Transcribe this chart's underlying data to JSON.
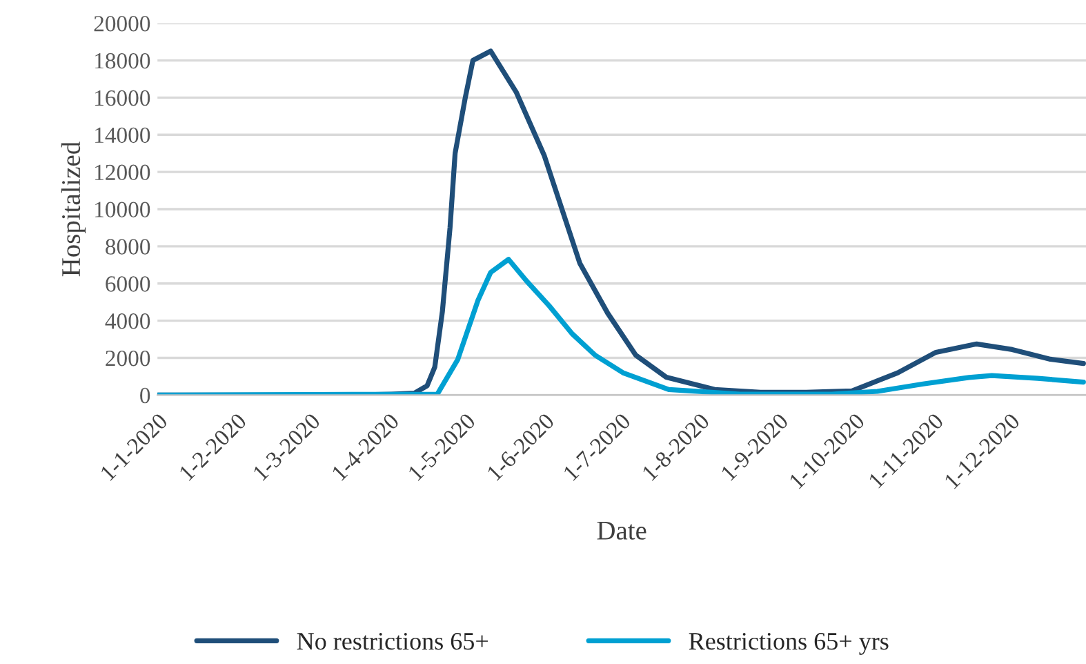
{
  "chart_data": {
    "type": "line",
    "xlabel": "Date",
    "ylabel": "Hospitalized",
    "ylim": [
      0,
      20000
    ],
    "yticks": [
      0,
      2000,
      4000,
      6000,
      8000,
      10000,
      12000,
      14000,
      16000,
      18000,
      20000
    ],
    "xlim": [
      "2020-01-01",
      "2020-12-31"
    ],
    "xticks": [
      {
        "value": "2020-01-01",
        "label": "1-1-2020"
      },
      {
        "value": "2020-02-01",
        "label": "1-2-2020"
      },
      {
        "value": "2020-03-01",
        "label": "1-3-2020"
      },
      {
        "value": "2020-04-01",
        "label": "1-4-2020"
      },
      {
        "value": "2020-05-01",
        "label": "1-5-2020"
      },
      {
        "value": "2020-06-01",
        "label": "1-6-2020"
      },
      {
        "value": "2020-07-01",
        "label": "1-7-2020"
      },
      {
        "value": "2020-08-01",
        "label": "1-8-2020"
      },
      {
        "value": "2020-09-01",
        "label": "1-9-2020"
      },
      {
        "value": "2020-10-01",
        "label": "1-10-2020"
      },
      {
        "value": "2020-11-01",
        "label": "1-11-2020"
      },
      {
        "value": "2020-12-01",
        "label": "1-12-2020"
      }
    ],
    "grid": "y",
    "legend": "bottom",
    "marker": "none",
    "line_style": "solid",
    "series": [
      {
        "name": "No restrictions 65+",
        "color": "#1f4e79",
        "x": [
          "2020-01-01",
          "2020-03-15",
          "2020-04-02",
          "2020-04-11",
          "2020-04-16",
          "2020-04-19",
          "2020-04-22",
          "2020-04-25",
          "2020-04-27",
          "2020-05-01",
          "2020-05-04",
          "2020-05-11",
          "2020-05-21",
          "2020-06-01",
          "2020-06-15",
          "2020-06-26",
          "2020-07-07",
          "2020-07-19",
          "2020-08-07",
          "2020-08-25",
          "2020-09-12",
          "2020-09-30",
          "2020-10-18",
          "2020-11-02",
          "2020-11-18",
          "2020-12-02",
          "2020-12-17",
          "2020-12-30"
        ],
        "values": [
          0,
          0,
          50,
          100,
          500,
          1500,
          4500,
          9000,
          13000,
          16000,
          18000,
          18500,
          16300,
          12900,
          7100,
          4400,
          2150,
          960,
          300,
          150,
          150,
          220,
          1200,
          2300,
          2750,
          2450,
          1930,
          1700
        ]
      },
      {
        "name": "Restrictions 65+ yrs",
        "color": "#00a0d2",
        "x": [
          "2020-01-01",
          "2020-04-20",
          "2020-04-28",
          "2020-05-06",
          "2020-05-11",
          "2020-05-18",
          "2020-05-25",
          "2020-06-03",
          "2020-06-12",
          "2020-06-21",
          "2020-07-02",
          "2020-07-20",
          "2020-08-17",
          "2020-09-22",
          "2020-10-10",
          "2020-10-28",
          "2020-11-15",
          "2020-11-24",
          "2020-12-12",
          "2020-12-30"
        ],
        "values": [
          0,
          50,
          1900,
          5100,
          6600,
          7300,
          6150,
          4800,
          3300,
          2150,
          1200,
          300,
          50,
          50,
          200,
          600,
          950,
          1050,
          900,
          700
        ]
      }
    ]
  }
}
